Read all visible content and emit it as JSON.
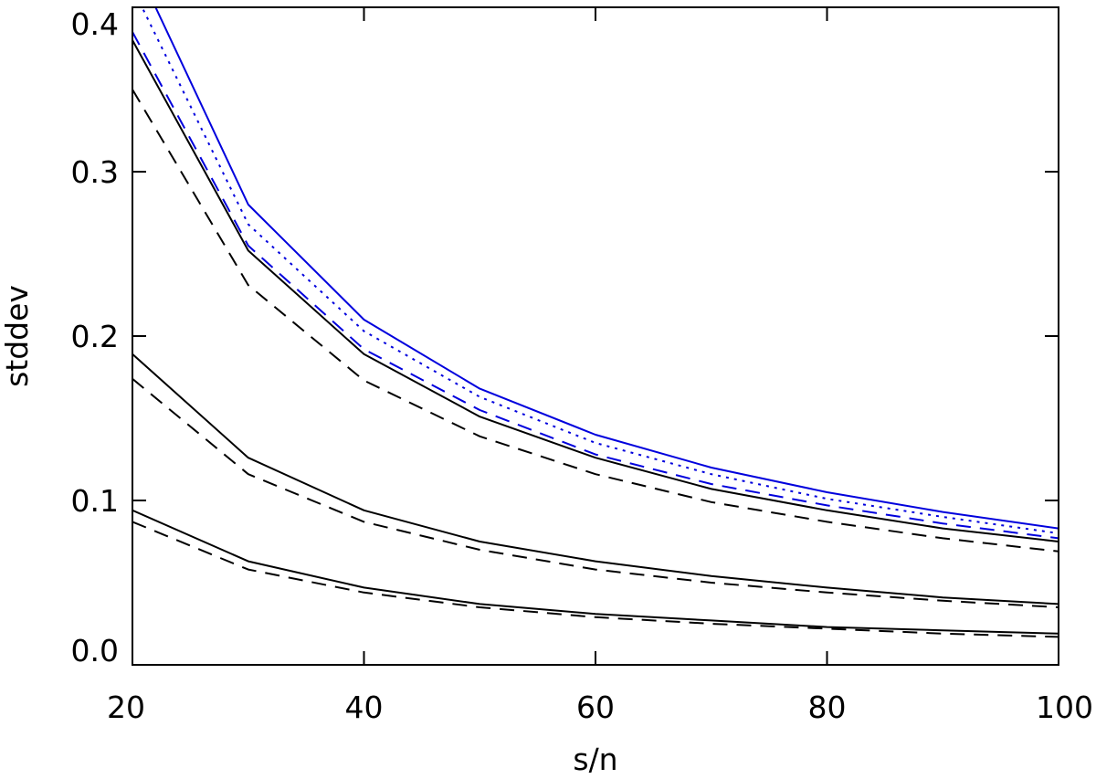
{
  "chart_data": {
    "type": "line",
    "title": "",
    "xlabel": "s/n",
    "ylabel": "stddev",
    "xlim": [
      20,
      100
    ],
    "ylim": [
      0.0,
      0.4
    ],
    "xticks": [
      20,
      40,
      60,
      80,
      100
    ],
    "xtick_labels": [
      "20",
      "40",
      "60",
      "80",
      "100"
    ],
    "yticks": [
      0.0,
      0.1,
      0.2,
      0.3,
      0.4
    ],
    "ytick_labels": [
      "0.0",
      "0.1",
      "0.2",
      "0.3",
      "0.4"
    ],
    "grid": false,
    "legend": "none",
    "x": [
      20,
      30,
      40,
      50,
      60,
      70,
      80,
      90,
      100
    ],
    "series": [
      {
        "color": "#0000dd",
        "dash": "solid",
        "values": [
          0.43,
          0.28,
          0.21,
          0.168,
          0.14,
          0.12,
          0.105,
          0.093,
          0.083
        ]
      },
      {
        "color": "#0000dd",
        "dash": "dotted",
        "values": [
          0.412,
          0.268,
          0.203,
          0.163,
          0.135,
          0.116,
          0.101,
          0.09,
          0.08
        ]
      },
      {
        "color": "#0000dd",
        "dash": "dashed",
        "values": [
          0.385,
          0.255,
          0.192,
          0.155,
          0.128,
          0.11,
          0.097,
          0.086,
          0.077
        ]
      },
      {
        "color": "#000000",
        "dash": "solid",
        "values": [
          0.38,
          0.252,
          0.189,
          0.151,
          0.126,
          0.107,
          0.094,
          0.083,
          0.075
        ]
      },
      {
        "color": "#000000",
        "dash": "dashed",
        "values": [
          0.35,
          0.231,
          0.173,
          0.139,
          0.116,
          0.099,
          0.087,
          0.077,
          0.069
        ]
      },
      {
        "color": "#000000",
        "dash": "solid",
        "values": [
          0.189,
          0.126,
          0.094,
          0.075,
          0.063,
          0.054,
          0.047,
          0.041,
          0.037
        ]
      },
      {
        "color": "#000000",
        "dash": "dashed",
        "values": [
          0.174,
          0.116,
          0.087,
          0.07,
          0.058,
          0.05,
          0.044,
          0.039,
          0.035
        ]
      },
      {
        "color": "#000000",
        "dash": "solid",
        "values": [
          0.094,
          0.063,
          0.047,
          0.037,
          0.031,
          0.027,
          0.023,
          0.021,
          0.019
        ]
      },
      {
        "color": "#000000",
        "dash": "dashed",
        "values": [
          0.087,
          0.058,
          0.044,
          0.035,
          0.029,
          0.025,
          0.022,
          0.019,
          0.017
        ]
      }
    ]
  }
}
